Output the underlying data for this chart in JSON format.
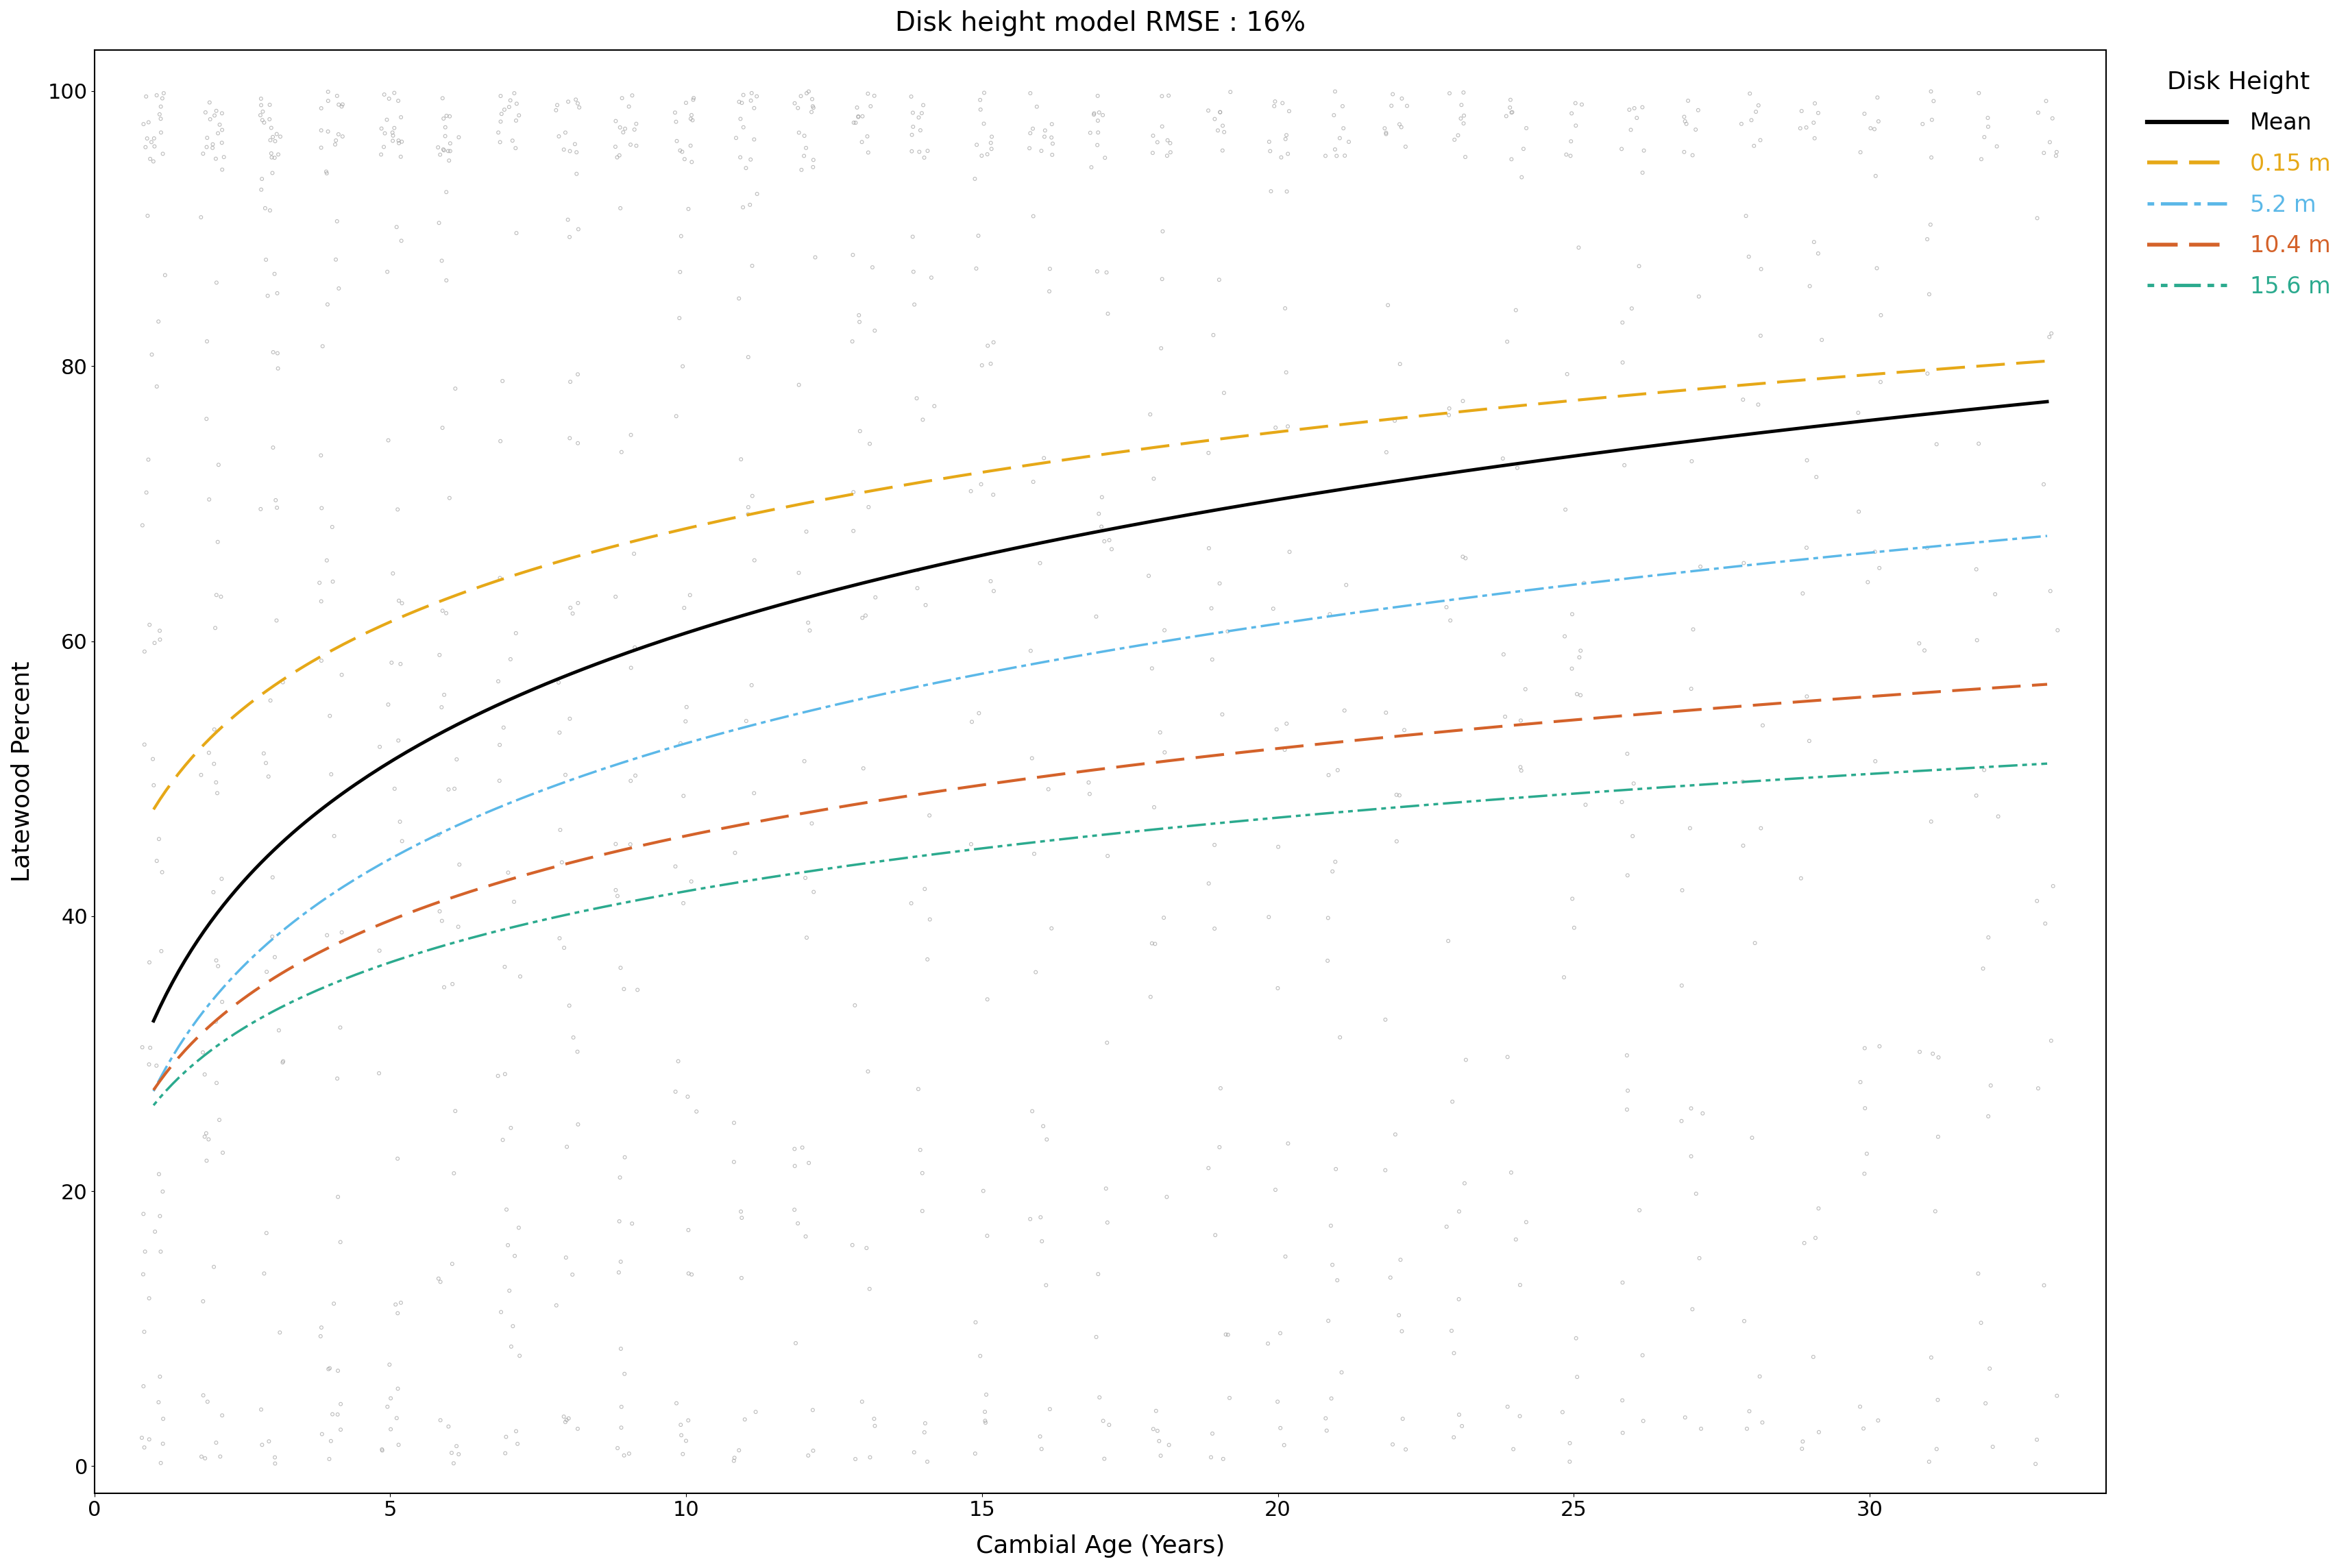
{
  "title": "Disk height model RMSE : 16%",
  "xlabel": "Cambial Age (Years)",
  "ylabel": "Latewood Percent",
  "xlim": [
    0,
    34
  ],
  "ylim": [
    -2,
    103
  ],
  "xticks": [
    0,
    5,
    10,
    15,
    20,
    25,
    30
  ],
  "yticks": [
    0,
    20,
    40,
    60,
    80,
    100
  ],
  "legend_title": "Disk Height",
  "curves": {
    "mean": {
      "color": "#000000",
      "linestyle": "solid",
      "linewidth": 3.5,
      "label": "Mean"
    },
    "h015": {
      "color": "#E6A817",
      "linestyle": "dashed",
      "linewidth": 3.0,
      "label": "0.15 m",
      "dash": [
        10,
        4
      ]
    },
    "h52": {
      "color": "#5BB8E8",
      "linestyle": "dashdot",
      "linewidth": 2.5,
      "label": "5.2 m",
      "dash": [
        2,
        2,
        8,
        2
      ]
    },
    "h104": {
      "color": "#D4622A",
      "linestyle": "dashed",
      "linewidth": 3.0,
      "label": "10.4 m",
      "dash": [
        10,
        4
      ]
    },
    "h156": {
      "color": "#2BAA8E",
      "linestyle": "dashdot",
      "linewidth": 2.5,
      "label": "15.6 m",
      "dash": [
        2,
        2,
        2,
        2,
        8,
        2
      ]
    }
  },
  "scatter_color": "#C0C0C0",
  "scatter_edgecolor": "#A0A0A0",
  "scatter_size": 12,
  "background_color": "#FFFFFF",
  "title_fontsize": 28,
  "axis_label_fontsize": 26,
  "tick_fontsize": 22,
  "legend_fontsize": 24,
  "legend_title_fontsize": 26
}
